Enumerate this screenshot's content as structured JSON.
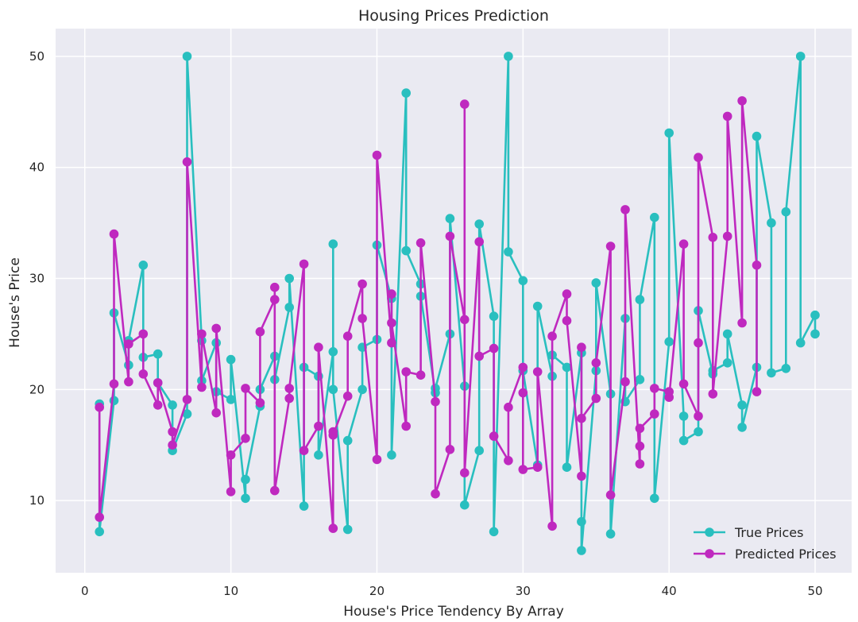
{
  "chart_data": {
    "type": "line",
    "title": "Housing Prices Prediction",
    "xlabel": "House's Price Tendency By Array",
    "ylabel": "House's Price",
    "xlim": [
      -2,
      52.5
    ],
    "ylim": [
      3.5,
      52.5
    ],
    "xticks": [
      0,
      10,
      20,
      30,
      40,
      50
    ],
    "yticks": [
      10,
      20,
      30,
      40,
      50
    ],
    "grid": true,
    "legend_position": "lower right",
    "series": [
      {
        "name": "True Prices",
        "color": "#29bfbf",
        "points": [
          [
            1.0,
            18.7
          ],
          [
            1.0,
            7.2
          ],
          [
            2.0,
            19.0
          ],
          [
            2.0,
            26.9
          ],
          [
            3.0,
            22.2
          ],
          [
            3.0,
            24.4
          ],
          [
            4.0,
            31.2
          ],
          [
            4.0,
            22.9
          ],
          [
            5.0,
            23.2
          ],
          [
            5.0,
            20.6
          ],
          [
            6.0,
            18.6
          ],
          [
            6.0,
            14.5
          ],
          [
            7.0,
            17.8
          ],
          [
            7.0,
            50.0
          ],
          [
            8.0,
            24.4
          ],
          [
            8.0,
            20.8
          ],
          [
            9.0,
            24.2
          ],
          [
            9.0,
            19.8
          ],
          [
            10.0,
            19.1
          ],
          [
            10.0,
            22.7
          ],
          [
            11.0,
            10.2
          ],
          [
            11.0,
            11.9
          ],
          [
            12.0,
            18.5
          ],
          [
            12.0,
            20.0
          ],
          [
            13.0,
            23.0
          ],
          [
            13.0,
            20.9
          ],
          [
            14.0,
            27.4
          ],
          [
            14.0,
            30.0
          ],
          [
            15.0,
            9.5
          ],
          [
            15.0,
            22.0
          ],
          [
            16.0,
            21.2
          ],
          [
            16.0,
            14.1
          ],
          [
            17.0,
            23.4
          ],
          [
            17.0,
            33.1
          ],
          [
            17.0,
            20.0
          ],
          [
            18.0,
            7.4
          ],
          [
            18.0,
            15.4
          ],
          [
            19.0,
            20.0
          ],
          [
            19.0,
            23.8
          ],
          [
            20.0,
            24.5
          ],
          [
            20.0,
            33.0
          ],
          [
            21.0,
            28.2
          ],
          [
            21.0,
            14.1
          ],
          [
            22.0,
            46.7
          ],
          [
            22.0,
            32.5
          ],
          [
            23.0,
            29.5
          ],
          [
            23.0,
            28.4
          ],
          [
            24.0,
            19.7
          ],
          [
            24.0,
            20.1
          ],
          [
            25.0,
            25.0
          ],
          [
            25.0,
            35.4
          ],
          [
            26.0,
            20.3
          ],
          [
            26.0,
            9.6
          ],
          [
            27.0,
            14.5
          ],
          [
            27.0,
            34.9
          ],
          [
            28.0,
            26.6
          ],
          [
            28.0,
            7.2
          ],
          [
            29.0,
            50.0
          ],
          [
            29.0,
            32.4
          ],
          [
            30.0,
            29.8
          ],
          [
            30.0,
            21.7
          ],
          [
            31.0,
            13.2
          ],
          [
            31.0,
            27.5
          ],
          [
            32.0,
            21.2
          ],
          [
            32.0,
            23.1
          ],
          [
            33.0,
            22.0
          ],
          [
            33.0,
            13.0
          ],
          [
            34.0,
            23.3
          ],
          [
            34.0,
            8.1
          ],
          [
            34.0,
            5.5
          ],
          [
            35.0,
            21.7
          ],
          [
            35.0,
            29.6
          ],
          [
            36.0,
            19.6
          ],
          [
            36.0,
            7.0
          ],
          [
            37.0,
            26.4
          ],
          [
            37.0,
            18.9
          ],
          [
            38.0,
            20.9
          ],
          [
            38.0,
            28.1
          ],
          [
            39.0,
            35.5
          ],
          [
            39.0,
            10.2
          ],
          [
            40.0,
            24.3
          ],
          [
            40.0,
            43.1
          ],
          [
            41.0,
            17.6
          ],
          [
            41.0,
            15.4
          ],
          [
            42.0,
            16.2
          ],
          [
            42.0,
            27.1
          ],
          [
            43.0,
            21.4
          ],
          [
            43.0,
            21.7
          ],
          [
            44.0,
            22.4
          ],
          [
            44.0,
            25.0
          ],
          [
            45.0,
            18.6
          ],
          [
            45.0,
            16.6
          ],
          [
            46.0,
            22.0
          ],
          [
            46.0,
            42.8
          ],
          [
            47.0,
            35.0
          ],
          [
            47.0,
            21.5
          ],
          [
            48.0,
            21.9
          ],
          [
            48.0,
            36.0
          ],
          [
            49.0,
            50.0
          ],
          [
            49.0,
            24.2
          ],
          [
            50.0,
            26.7
          ],
          [
            50.0,
            25.0
          ]
        ]
      },
      {
        "name": "Predicted Prices",
        "color": "#bf29bf",
        "points": [
          [
            1.0,
            18.4
          ],
          [
            1.0,
            8.5
          ],
          [
            2.0,
            20.5
          ],
          [
            2.0,
            34.0
          ],
          [
            3.0,
            20.7
          ],
          [
            3.0,
            24.1
          ],
          [
            4.0,
            25.0
          ],
          [
            4.0,
            21.4
          ],
          [
            5.0,
            18.6
          ],
          [
            5.0,
            20.6
          ],
          [
            6.0,
            16.2
          ],
          [
            6.0,
            15.0
          ],
          [
            7.0,
            19.1
          ],
          [
            7.0,
            40.5
          ],
          [
            8.0,
            20.2
          ],
          [
            8.0,
            25.0
          ],
          [
            9.0,
            17.9
          ],
          [
            9.0,
            25.5
          ],
          [
            10.0,
            10.8
          ],
          [
            10.0,
            14.1
          ],
          [
            11.0,
            15.6
          ],
          [
            11.0,
            20.1
          ],
          [
            12.0,
            18.8
          ],
          [
            12.0,
            25.2
          ],
          [
            13.0,
            28.1
          ],
          [
            13.0,
            29.2
          ],
          [
            13.0,
            10.9
          ],
          [
            14.0,
            19.2
          ],
          [
            14.0,
            20.1
          ],
          [
            15.0,
            31.3
          ],
          [
            15.0,
            14.5
          ],
          [
            16.0,
            16.7
          ],
          [
            16.0,
            23.8
          ],
          [
            17.0,
            7.5
          ],
          [
            17.0,
            16.2
          ],
          [
            17.0,
            15.9
          ],
          [
            18.0,
            19.4
          ],
          [
            18.0,
            24.8
          ],
          [
            19.0,
            29.5
          ],
          [
            19.0,
            26.4
          ],
          [
            20.0,
            13.7
          ],
          [
            20.0,
            41.1
          ],
          [
            21.0,
            24.2
          ],
          [
            21.0,
            28.6
          ],
          [
            21.0,
            26.0
          ],
          [
            22.0,
            16.7
          ],
          [
            22.0,
            21.6
          ],
          [
            23.0,
            21.3
          ],
          [
            23.0,
            33.2
          ],
          [
            24.0,
            18.9
          ],
          [
            24.0,
            10.6
          ],
          [
            25.0,
            14.6
          ],
          [
            25.0,
            33.8
          ],
          [
            26.0,
            26.3
          ],
          [
            26.0,
            45.7
          ],
          [
            26.0,
            12.5
          ],
          [
            27.0,
            33.3
          ],
          [
            27.0,
            23.0
          ],
          [
            28.0,
            23.7
          ],
          [
            28.0,
            15.8
          ],
          [
            29.0,
            13.6
          ],
          [
            29.0,
            18.4
          ],
          [
            30.0,
            22.0
          ],
          [
            30.0,
            19.7
          ],
          [
            30.0,
            12.8
          ],
          [
            31.0,
            13.0
          ],
          [
            31.0,
            21.6
          ],
          [
            32.0,
            7.7
          ],
          [
            32.0,
            24.8
          ],
          [
            33.0,
            28.6
          ],
          [
            33.0,
            26.2
          ],
          [
            34.0,
            12.2
          ],
          [
            34.0,
            23.8
          ],
          [
            34.0,
            17.4
          ],
          [
            35.0,
            19.2
          ],
          [
            35.0,
            22.4
          ],
          [
            36.0,
            32.9
          ],
          [
            36.0,
            10.5
          ],
          [
            37.0,
            20.7
          ],
          [
            37.0,
            36.2
          ],
          [
            38.0,
            13.3
          ],
          [
            38.0,
            14.9
          ],
          [
            38.0,
            16.5
          ],
          [
            39.0,
            17.8
          ],
          [
            39.0,
            20.1
          ],
          [
            40.0,
            19.8
          ],
          [
            40.0,
            19.3
          ],
          [
            41.0,
            33.1
          ],
          [
            41.0,
            20.5
          ],
          [
            42.0,
            17.6
          ],
          [
            42.0,
            24.2
          ],
          [
            42.0,
            40.9
          ],
          [
            43.0,
            33.7
          ],
          [
            43.0,
            19.6
          ],
          [
            44.0,
            33.8
          ],
          [
            44.0,
            44.6
          ],
          [
            45.0,
            26.0
          ],
          [
            45.0,
            46.0
          ],
          [
            46.0,
            31.2
          ],
          [
            46.0,
            19.8
          ]
        ]
      }
    ]
  }
}
